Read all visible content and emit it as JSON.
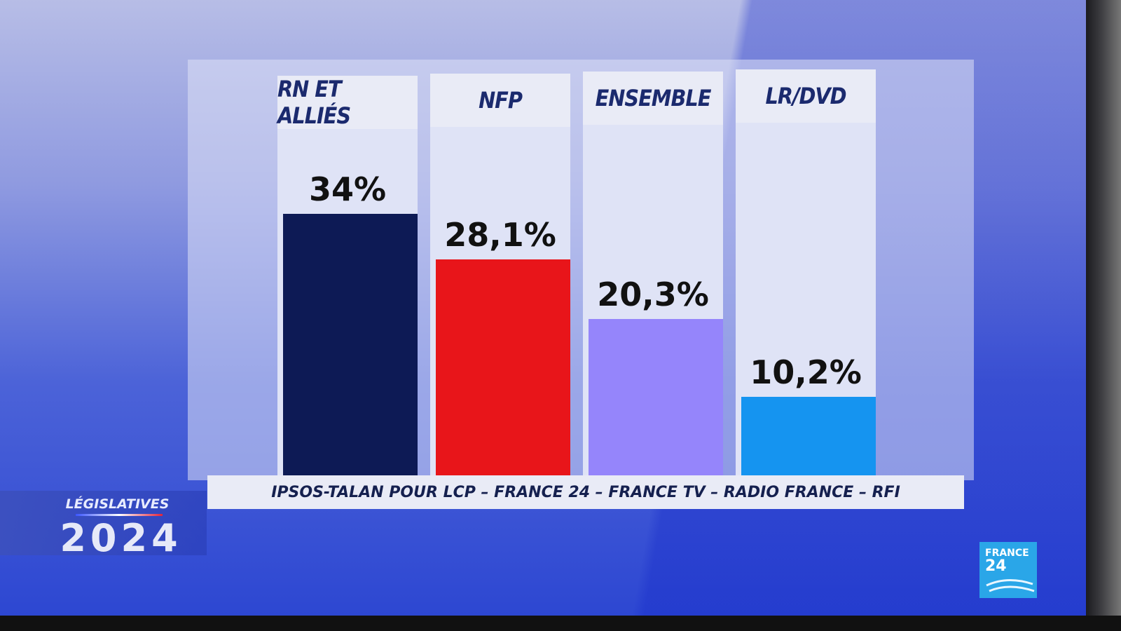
{
  "broadcast": {
    "brand_label": "LÉGISLATIVES",
    "brand_year": "2024",
    "logo_line1": "FRANCE",
    "logo_line2": "24"
  },
  "chart_data": {
    "type": "bar",
    "categories": [
      "RN ET ALLIÉS",
      "NFP",
      "ENSEMBLE",
      "LR/DVD"
    ],
    "values": [
      34,
      28.1,
      20.3,
      10.2
    ],
    "value_labels": [
      "34%",
      "28,1%",
      "20,3%",
      "10,2%"
    ],
    "colors": [
      "#0d1a55",
      "#e8151a",
      "#9585fb",
      "#1594f0"
    ],
    "ylim": [
      0,
      45
    ],
    "source": "IPSOS-TALAN POUR LCP – FRANCE 24 – FRANCE TV – RADIO FRANCE – RFI"
  }
}
